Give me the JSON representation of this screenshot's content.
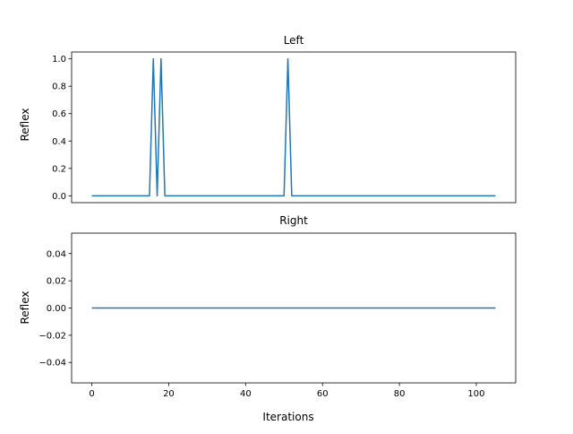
{
  "chart_data": [
    {
      "type": "line",
      "title": "Left",
      "xlabel": "",
      "ylabel": "Reflex",
      "xlim": [
        -5.25,
        110.25
      ],
      "ylim": [
        -0.05,
        1.05
      ],
      "xticks": [],
      "yticks": [
        0.0,
        0.2,
        0.4,
        0.6,
        0.8,
        1.0
      ],
      "ytick_labels": [
        "0.0",
        "0.2",
        "0.4",
        "0.6",
        "0.8",
        "1.0"
      ],
      "grid": false,
      "series": [
        {
          "color": "#1f77b4",
          "x": [
            0,
            15,
            16,
            17,
            18,
            19,
            50,
            51,
            52,
            105
          ],
          "y": [
            0,
            0,
            1,
            0,
            1,
            0,
            0,
            1,
            0,
            0
          ]
        }
      ]
    },
    {
      "type": "line",
      "title": "Right",
      "xlabel": "Iterations",
      "ylabel": "Reflex",
      "xlim": [
        -5.25,
        110.25
      ],
      "ylim": [
        -0.055,
        0.055
      ],
      "xticks": [
        0,
        20,
        40,
        60,
        80,
        100
      ],
      "xtick_labels": [
        "0",
        "20",
        "40",
        "60",
        "80",
        "100"
      ],
      "yticks": [
        -0.04,
        -0.02,
        0.0,
        0.02,
        0.04
      ],
      "ytick_labels": [
        "−0.04",
        "−0.02",
        "0.00",
        "0.02",
        "0.04"
      ],
      "grid": false,
      "series": [
        {
          "color": "#1f77b4",
          "x": [
            0,
            105
          ],
          "y": [
            0,
            0
          ]
        }
      ]
    }
  ]
}
